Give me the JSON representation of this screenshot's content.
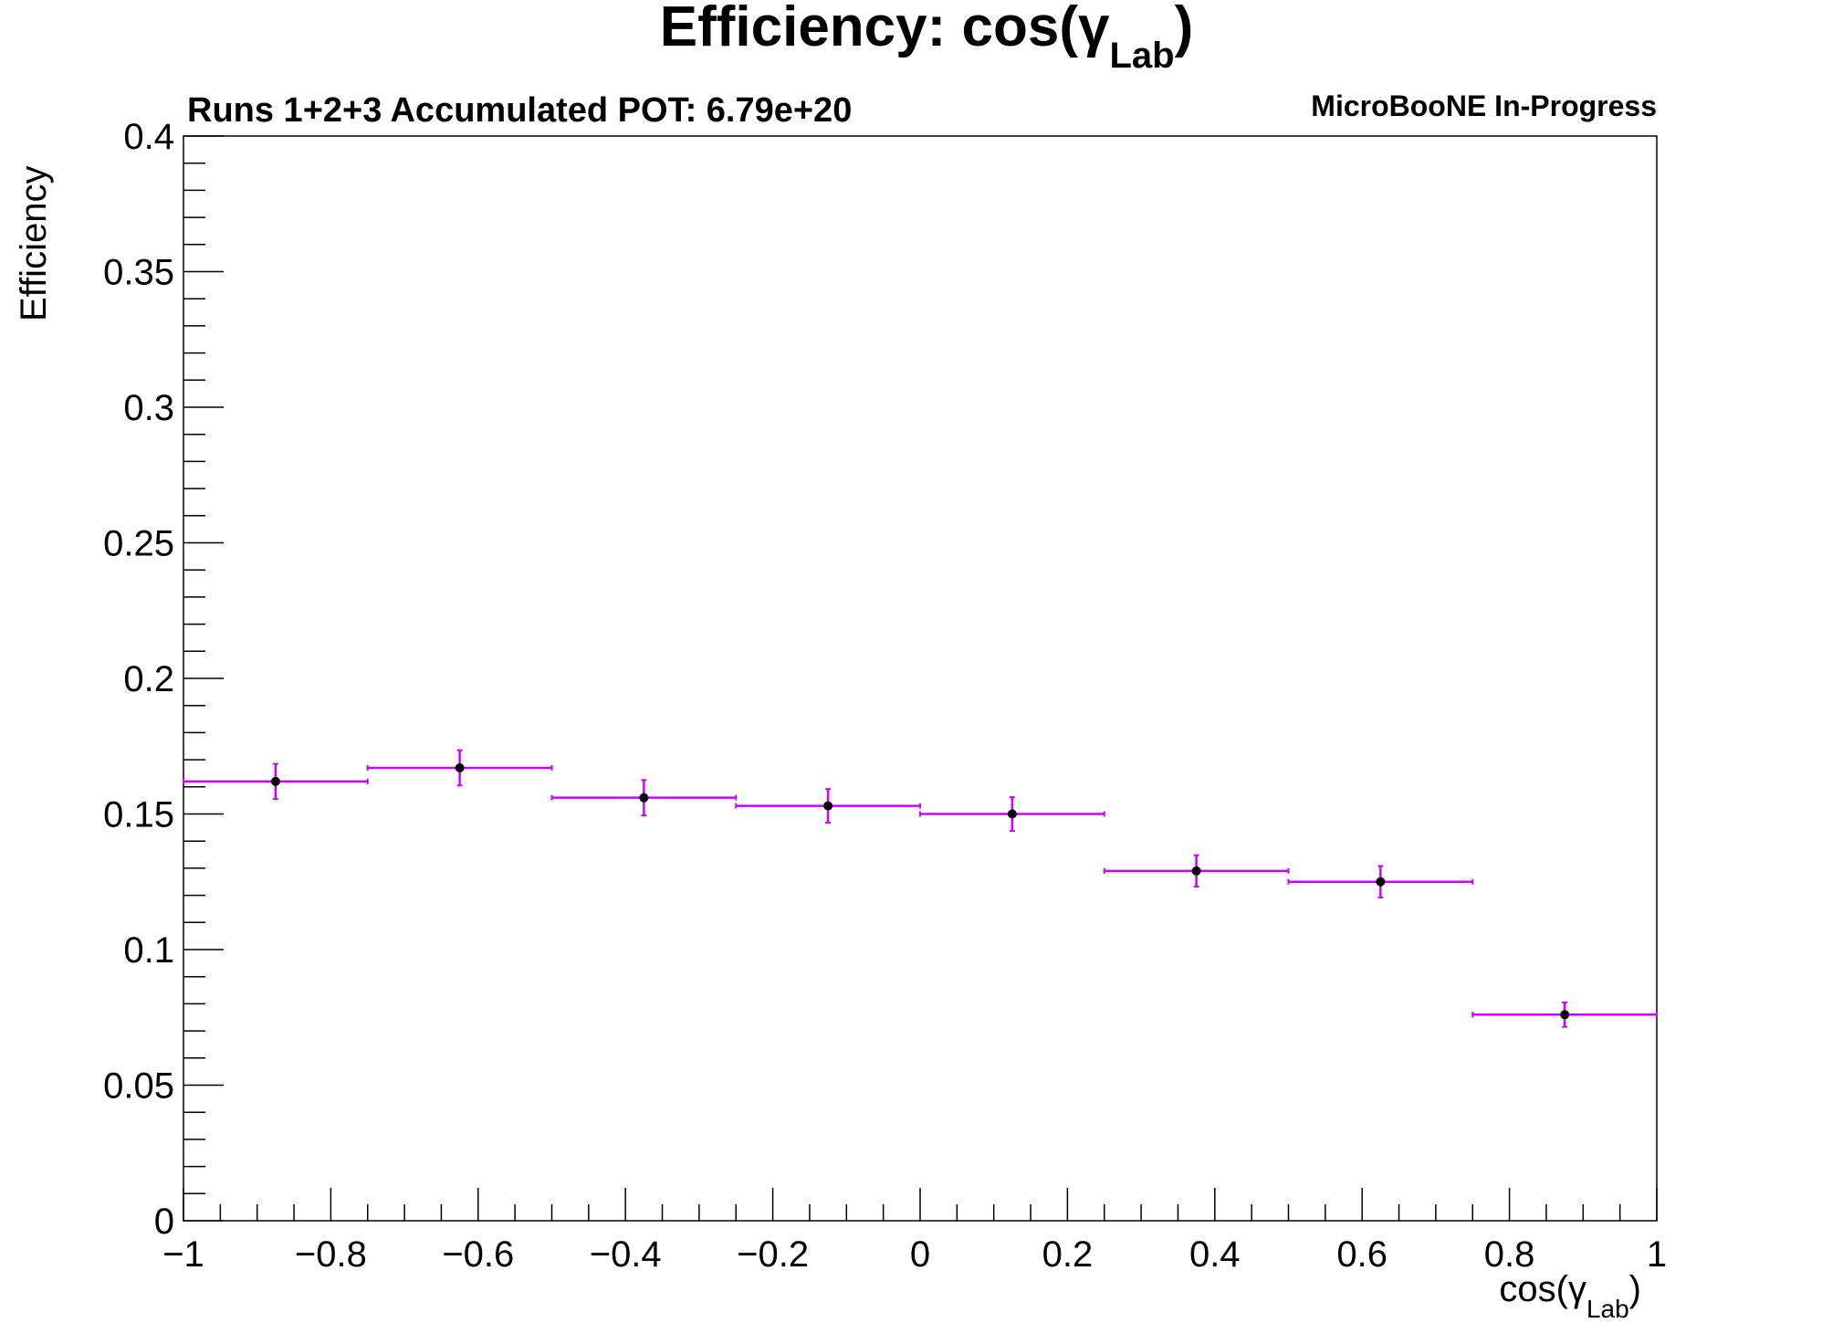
{
  "chart_data": {
    "type": "scatter",
    "title": "Efficiency: cos(γ",
    "title_subscript": "Lab",
    "title_close": ")",
    "subtitle": "Runs 1+2+3 Accumulated POT: 6.79e+20",
    "collaboration_label": "MicroBooNE In-Progress",
    "xlabel": "cos(γ",
    "xlabel_subscript": "Lab",
    "xlabel_close": ")",
    "ylabel": "Efficiency",
    "xlim": [
      -1,
      1
    ],
    "ylim": [
      0,
      0.4
    ],
    "x_ticks": [
      -1,
      -0.8,
      -0.6,
      -0.4,
      -0.2,
      0,
      0.2,
      0.4,
      0.6,
      0.8,
      1
    ],
    "x_tick_labels": [
      "−1",
      "−0.8",
      "−0.6",
      "−0.4",
      "−0.2",
      "0",
      "0.2",
      "0.4",
      "0.6",
      "0.8",
      "1"
    ],
    "y_ticks": [
      0,
      0.05,
      0.1,
      0.15,
      0.2,
      0.25,
      0.3,
      0.35,
      0.4
    ],
    "y_tick_labels": [
      "0",
      "0.05",
      "0.1",
      "0.15",
      "0.2",
      "0.25",
      "0.3",
      "0.35",
      "0.4"
    ],
    "grid": false,
    "series": [
      {
        "bin_edges": [
          -1,
          -0.75,
          -0.5,
          -0.25,
          0,
          0.25,
          0.5,
          0.75,
          1
        ],
        "x": [
          -0.875,
          -0.625,
          -0.375,
          -0.125,
          0.125,
          0.375,
          0.625,
          0.875
        ],
        "y": [
          0.162,
          0.167,
          0.156,
          0.153,
          0.15,
          0.129,
          0.125,
          0.076
        ],
        "y_err": [
          0.0065,
          0.0065,
          0.0065,
          0.0062,
          0.0062,
          0.0058,
          0.0058,
          0.0045
        ],
        "marker_color": "#000000",
        "error_color": "#cc00ff"
      }
    ]
  }
}
